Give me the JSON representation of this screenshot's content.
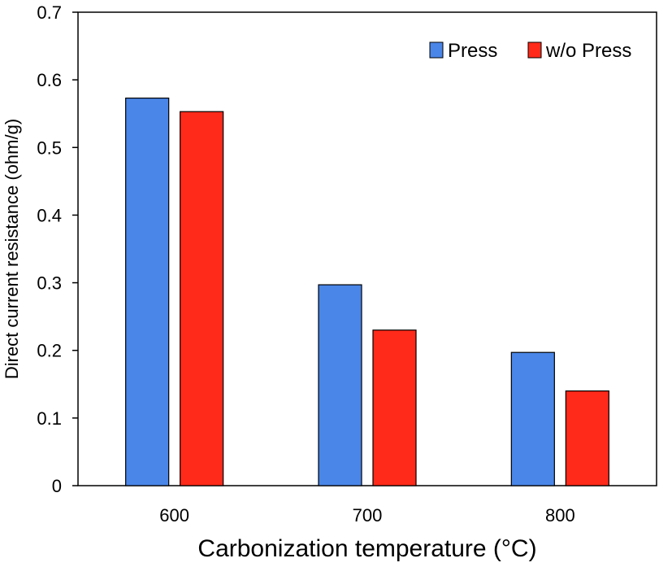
{
  "chart_data": {
    "type": "bar",
    "categories": [
      "600",
      "700",
      "800"
    ],
    "series": [
      {
        "name": "Press",
        "values": [
          0.573,
          0.297,
          0.197
        ],
        "color": "#4a86e8"
      },
      {
        "name": "w/o Press",
        "values": [
          0.553,
          0.23,
          0.14
        ],
        "color": "#ff2a1a"
      }
    ],
    "xlabel": "Carbonization temperature (°C)",
    "ylabel": "Direct current resistance (ohm/g)",
    "ylim": [
      0,
      0.7
    ],
    "yticks": [
      "0",
      "0.1",
      "0.2",
      "0.3",
      "0.4",
      "0.5",
      "0.6",
      "0.7"
    ],
    "legend_position": "top-right",
    "grid": false
  }
}
